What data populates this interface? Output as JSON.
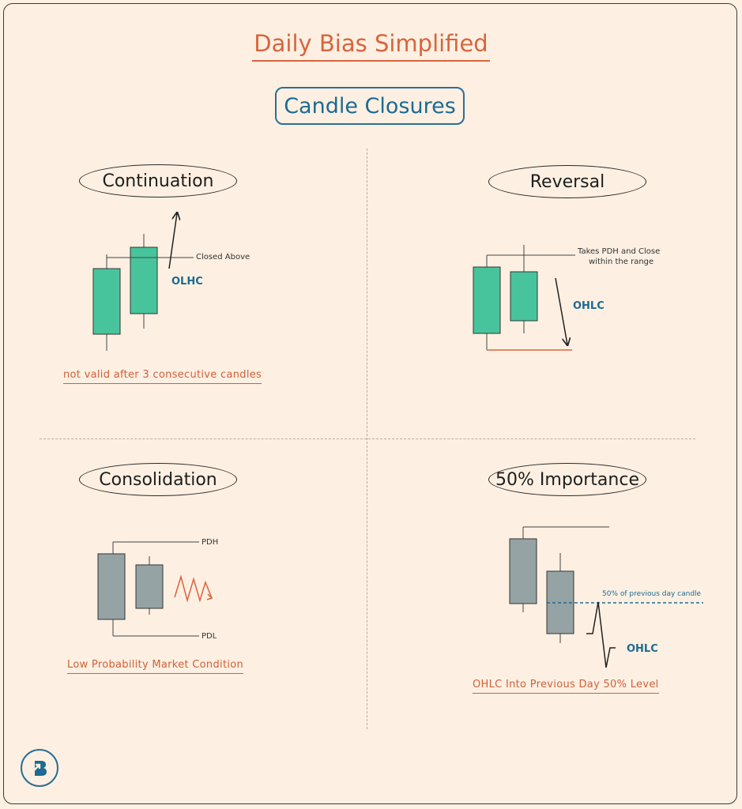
{
  "header": {
    "title": "Daily Bias Simplified",
    "subtitle": "Candle Closures"
  },
  "colors": {
    "accent_orange": "#d9643c",
    "accent_blue": "#1d6a92",
    "bull_candle": "#48c49c",
    "neutral_candle": "#95a3a4",
    "background": "#fdf0e2"
  },
  "panels": {
    "continuation": {
      "title": "Continuation",
      "line_label": "Closed Above",
      "pattern_label": "OLHC",
      "note": "not valid after 3 consecutive candles"
    },
    "reversal": {
      "title": "Reversal",
      "line_label_1": "Takes PDH and Close",
      "line_label_2": "within the range",
      "pattern_label": "OHLC"
    },
    "consolidation": {
      "title": "Consolidation",
      "pdh_label": "PDH",
      "pdl_label": "PDL",
      "note": "Low Probability Market Condition"
    },
    "fifty": {
      "title": "50% Importance",
      "level_label": "50% of previous day candle",
      "pattern_label": "OHLC",
      "note": "OHLC Into Previous Day 50% Level"
    }
  },
  "logo": {
    "icon": "brand-b-arrow-icon"
  }
}
